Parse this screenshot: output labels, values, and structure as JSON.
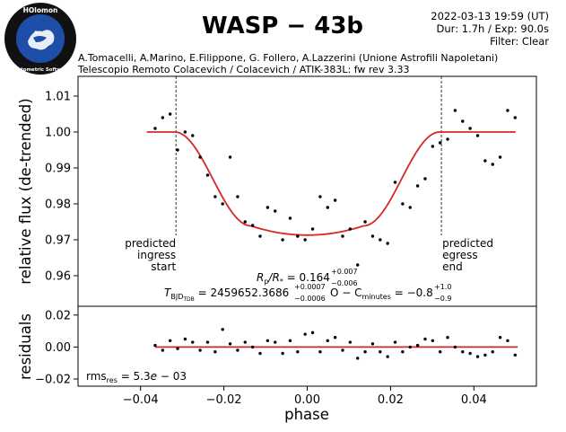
{
  "logo": {
    "top_text": "HOlomon",
    "bottom_text": "Photometric Software",
    "colors": {
      "outer": "#111111",
      "inner": "#1e4fa8",
      "text": "#ffffff"
    }
  },
  "header": {
    "title": "WASP − 43b",
    "date": "2022-03-13 19:59 (UT)",
    "duration_exposure": "Dur: 1.7h / Exp: 90.0s",
    "filter": "Filter: Clear",
    "authors": "A.Tomacelli, A.Marino, E.Filippone, G. Follero, A.Lazzerini  (Unione Astrofili Napoletani)",
    "telescope": "Telescopio Remoto Colacevich / Colacevich / ATIK-383L: fw rev 3.33"
  },
  "chart_data": [
    {
      "type": "scatter",
      "panel": "light-curve",
      "ylabel": "relative flux (de-trended)",
      "xlim": [
        -0.055,
        0.055
      ],
      "ylim": [
        0.9515,
        1.0155
      ],
      "yticks": [
        0.96,
        0.97,
        0.98,
        0.99,
        1.0,
        1.01
      ],
      "ytick_labels": [
        "0.96",
        "0.97",
        "0.98",
        "0.99",
        "1.00",
        "1.01"
      ],
      "points": {
        "x": [
          -0.0365,
          -0.0347,
          -0.0329,
          -0.0311,
          -0.0293,
          -0.0275,
          -0.0257,
          -0.0239,
          -0.0221,
          -0.0203,
          -0.0185,
          -0.0167,
          -0.0149,
          -0.0131,
          -0.0113,
          -0.0095,
          -0.0077,
          -0.0059,
          -0.0041,
          -0.0023,
          -0.0005,
          0.0013,
          0.0031,
          0.0049,
          0.0067,
          0.0085,
          0.0103,
          0.0121,
          0.0139,
          0.0157,
          0.0175,
          0.0193,
          0.0211,
          0.0229,
          0.0247,
          0.0265,
          0.0283,
          0.0301,
          0.0319,
          0.0337,
          0.0355,
          0.0373,
          0.0391,
          0.0409,
          0.0427,
          0.0445,
          0.0463,
          0.0481,
          0.0499
        ],
        "y": [
          1.001,
          1.004,
          1.005,
          0.995,
          1.0,
          0.999,
          0.993,
          0.988,
          0.982,
          0.98,
          0.993,
          0.982,
          0.975,
          0.974,
          0.971,
          0.979,
          0.978,
          0.97,
          0.976,
          0.971,
          0.97,
          0.973,
          0.982,
          0.979,
          0.981,
          0.971,
          0.973,
          0.963,
          0.975,
          0.971,
          0.97,
          0.969,
          0.986,
          0.98,
          0.979,
          0.985,
          0.987,
          0.996,
          0.997,
          0.998,
          1.006,
          1.003,
          1.001,
          0.999,
          0.992,
          0.991,
          0.993,
          1.006,
          1.004
        ]
      },
      "model": {
        "name": "transit model",
        "baseline": 1.0,
        "depth": 0.0287,
        "ingress_start": -0.0318,
        "ingress_end": -0.0135,
        "egress_start": 0.0135,
        "egress_end": 0.0318,
        "color": "#d62728"
      },
      "predicted_lines": [
        {
          "x": -0.0315,
          "label_lines": [
            "predicted",
            "ingress",
            "start"
          ]
        },
        {
          "x": 0.0322,
          "label_lines": [
            "predicted",
            "egress",
            "end"
          ]
        }
      ],
      "annotations": {
        "rp_rs": {
          "prefix": "R",
          "prefix_sub": "p",
          "mid": "/R",
          "mid_sub": "*",
          "eq": " = 0.164",
          "sup": "+0.007",
          "sub": "−0.006"
        },
        "tmid": {
          "prefix": "T",
          "prefix_sub": "BJD",
          "prefix_subsub": "TDB",
          "eq": " = 2459652.3686",
          "sup": "+0.0007",
          "sub": "−0.0006"
        },
        "omc": {
          "prefix": "O − C",
          "prefix_sub": "minutes",
          "eq": " = −0.8",
          "sup": "+1.0",
          "sub": "−0.9"
        }
      }
    },
    {
      "type": "scatter",
      "panel": "residuals",
      "ylabel": "residuals",
      "xlabel": "phase",
      "xlim": [
        -0.055,
        0.055
      ],
      "ylim": [
        -0.0245,
        0.0255
      ],
      "xticks": [
        -0.04,
        -0.02,
        0.0,
        0.02,
        0.04
      ],
      "xtick_labels": [
        "−0.04",
        "−0.02",
        "0.00",
        "0.02",
        "0.04"
      ],
      "yticks": [
        -0.02,
        0.0,
        0.02
      ],
      "ytick_labels": [
        "−0.02",
        "0.00",
        "0.02"
      ],
      "points": {
        "x": [
          -0.0365,
          -0.0347,
          -0.0329,
          -0.0311,
          -0.0293,
          -0.0275,
          -0.0257,
          -0.0239,
          -0.0221,
          -0.0203,
          -0.0185,
          -0.0167,
          -0.0149,
          -0.0131,
          -0.0113,
          -0.0095,
          -0.0077,
          -0.0059,
          -0.0041,
          -0.0023,
          -0.0005,
          0.0013,
          0.0031,
          0.0049,
          0.0067,
          0.0085,
          0.0103,
          0.0121,
          0.0139,
          0.0157,
          0.0175,
          0.0193,
          0.0211,
          0.0229,
          0.0247,
          0.0265,
          0.0283,
          0.0301,
          0.0319,
          0.0337,
          0.0355,
          0.0373,
          0.0391,
          0.0409,
          0.0427,
          0.0445,
          0.0463,
          0.0481,
          0.0499
        ],
        "y": [
          0.001,
          -0.002,
          0.004,
          -0.001,
          0.005,
          0.003,
          -0.002,
          0.003,
          -0.003,
          0.011,
          0.002,
          -0.002,
          0.003,
          0.0,
          -0.004,
          0.004,
          0.003,
          -0.004,
          0.004,
          -0.003,
          0.008,
          0.009,
          -0.003,
          0.004,
          0.006,
          -0.002,
          0.003,
          -0.007,
          -0.003,
          0.002,
          -0.003,
          -0.006,
          0.003,
          -0.003,
          0.0,
          0.001,
          0.005,
          0.004,
          -0.003,
          0.006,
          0.0,
          -0.003,
          -0.004,
          -0.006,
          -0.005,
          -0.003,
          0.006,
          0.004,
          -0.005
        ]
      },
      "zero_line_color": "#d62728",
      "rms": {
        "prefix": "rms",
        "prefix_sub": "res",
        "eq": " = 5.3",
        "mant": "e",
        "exp": " − 03"
      }
    }
  ]
}
